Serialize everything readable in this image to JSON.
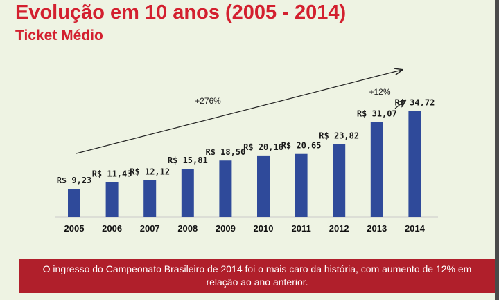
{
  "slide": {
    "title": "Evolução em 10 anos (2005 - 2014)",
    "subtitle": "Ticket Médio",
    "footer": "O ingresso do Campeonato Brasileiro de 2014 foi o mais caro da história, com aumento de 12% em relação ao ano anterior."
  },
  "colors": {
    "title": "#d3202f",
    "bar": "#2f4a9a",
    "footer_bg": "#b01f2b",
    "background": "#eef3e3"
  },
  "chart_data": {
    "type": "bar",
    "categories": [
      "2005",
      "2006",
      "2007",
      "2008",
      "2009",
      "2010",
      "2011",
      "2012",
      "2013",
      "2014"
    ],
    "values": [
      9.23,
      11.43,
      12.12,
      15.81,
      18.5,
      20.16,
      20.65,
      23.82,
      31.07,
      34.72
    ],
    "data_labels": [
      "R$ 9,23",
      "R$ 11,43",
      "R$ 12,12",
      "R$ 15,81",
      "R$ 18,50",
      "R$ 20,16",
      "R$ 20,65",
      "R$ 23,82",
      "R$ 31,07",
      "R$ 34,72"
    ],
    "ylim": [
      0,
      40
    ],
    "grid": false,
    "annotations": [
      {
        "text": "+276%",
        "from": "2005",
        "to": "2014"
      },
      {
        "text": "+12%",
        "from": "2013",
        "to": "2014"
      }
    ]
  }
}
